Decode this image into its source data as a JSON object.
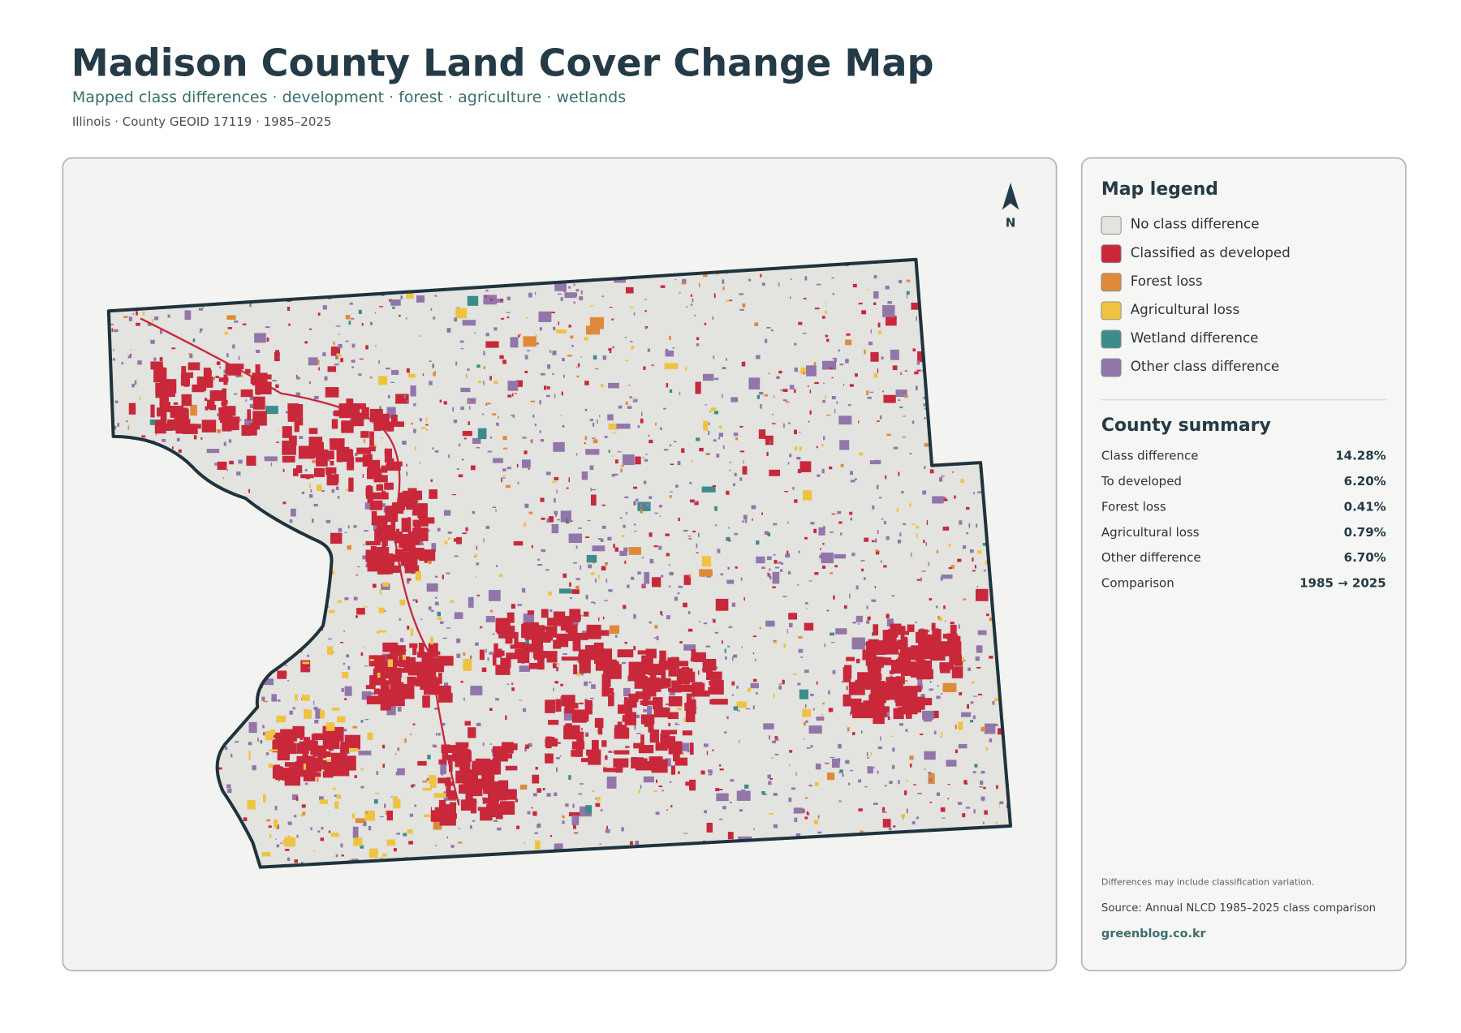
{
  "header": {
    "title": "Madison County Land Cover Change Map",
    "subtitle": "Mapped class differences · development · forest · agriculture · wetlands",
    "meta": "Illinois · County GEOID 17119 · 1985–2025"
  },
  "map": {
    "north_label": "N"
  },
  "legend": {
    "title": "Map legend",
    "items": [
      {
        "label": "No class difference",
        "color": "#e3e3e0"
      },
      {
        "label": "Classified as developed",
        "color": "#c8283a"
      },
      {
        "label": "Forest loss",
        "color": "#df8a3a"
      },
      {
        "label": "Agricultural loss",
        "color": "#efc340"
      },
      {
        "label": "Wetland difference",
        "color": "#3d8c8c"
      },
      {
        "label": "Other class difference",
        "color": "#9276aa"
      }
    ]
  },
  "summary": {
    "title": "County summary",
    "rows": [
      [
        "Class difference",
        "14.28%"
      ],
      [
        "To developed",
        "6.20%"
      ],
      [
        "Forest loss",
        "0.41%"
      ],
      [
        "Agricultural loss",
        "0.79%"
      ],
      [
        "Other difference",
        "6.70%"
      ],
      [
        "Comparison",
        "1985 → 2025"
      ]
    ]
  },
  "footer": {
    "note": "Differences may include classification variation.",
    "source": "Source: Annual NLCD 1985–2025 class comparison",
    "site": "greenblog.co.kr"
  }
}
